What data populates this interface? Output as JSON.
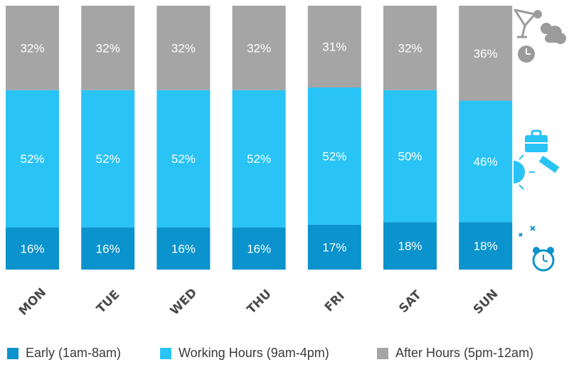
{
  "chart_data": {
    "type": "bar",
    "stacked": true,
    "normalized_percent": true,
    "categories": [
      "MON",
      "TUE",
      "WED",
      "THU",
      "FRI",
      "SAT",
      "SUN"
    ],
    "series": [
      {
        "name": "Early (1am-8am)",
        "color": "#0a93cc",
        "values": [
          16,
          16,
          16,
          16,
          17,
          18,
          18
        ],
        "labels": [
          "16%",
          "16%",
          "16%",
          "16%",
          "17%",
          "18%",
          "18%"
        ]
      },
      {
        "name": "Working Hours (9am-4pm)",
        "color": "#29c3f6",
        "values": [
          52,
          52,
          52,
          52,
          52,
          50,
          46
        ],
        "labels": [
          "52%",
          "52%",
          "52%",
          "52%",
          "52%",
          "50%",
          "46%"
        ]
      },
      {
        "name": "After Hours (5pm-12am)",
        "color": "#a5a5a5",
        "values": [
          32,
          32,
          32,
          32,
          31,
          32,
          36
        ],
        "labels": [
          "32%",
          "32%",
          "32%",
          "32%",
          "31%",
          "32%",
          "36%"
        ]
      }
    ],
    "title": "",
    "xlabel": "",
    "ylabel": "",
    "ylim": [
      0,
      100
    ],
    "grid": false,
    "legend_position": "bottom"
  },
  "icons": {
    "after_hours": [
      "cocktail-icon",
      "cloud-moon-icon",
      "clock-icon"
    ],
    "working_hours": [
      "briefcase-icon",
      "sun-icon",
      "ruler-icon"
    ],
    "early": [
      "moon-stars-icon",
      "alarm-clock-icon"
    ]
  }
}
